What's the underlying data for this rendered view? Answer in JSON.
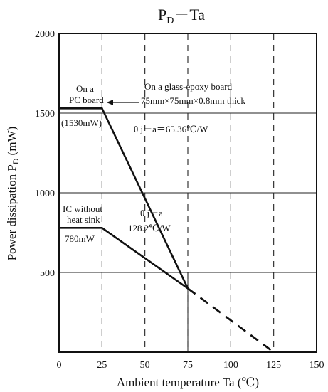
{
  "chart_data": {
    "type": "line",
    "title": "PD－Ta",
    "title_parts": {
      "main": "P",
      "sub": "D",
      "rest": "－Ta"
    },
    "xlabel": "Ambient temperature  Ta  (℃)",
    "ylabel_parts": {
      "main": "Power dissipation  P",
      "sub": "D",
      "rest": "  (mW)"
    },
    "xlim": [
      0,
      150
    ],
    "ylim": [
      0,
      2000
    ],
    "x_ticks": [
      "0",
      "25",
      "50",
      "75",
      "100",
      "125",
      "150"
    ],
    "y_ticks": [
      "500",
      "1000",
      "1500",
      "2000"
    ],
    "grid": "vertical dashed at 25, 50, 75, 100, 125; horizontal solid at 500, 1000, 1500; solid vertical at 75",
    "series": [
      {
        "solid": [
          [
            0,
            1530
          ],
          [
            25,
            1530
          ],
          [
            75,
            400
          ]
        ],
        "dashed": [
          [
            75,
            400
          ],
          [
            125,
            0
          ]
        ]
      },
      {
        "solid": [
          [
            0,
            780
          ],
          [
            25,
            780
          ],
          [
            75,
            400
          ]
        ],
        "dashed": [
          [
            75,
            400
          ],
          [
            125,
            0
          ]
        ]
      }
    ],
    "annotations": {
      "pc_board_line1": "On a",
      "pc_board_line2": "PC board",
      "glass_line1": "On a glass-epoxy board",
      "glass_line2": "75mm×75mm×0.8mm  thick",
      "val_1530": "(1530mW)",
      "theta1": "θ j－a＝65.36℃/W",
      "ic_line1": "IC without",
      "ic_line2": "heat sink",
      "theta2_line1": "θ j－a",
      "theta2_line2": "128.2℃/W",
      "val_780": "780mW"
    }
  }
}
